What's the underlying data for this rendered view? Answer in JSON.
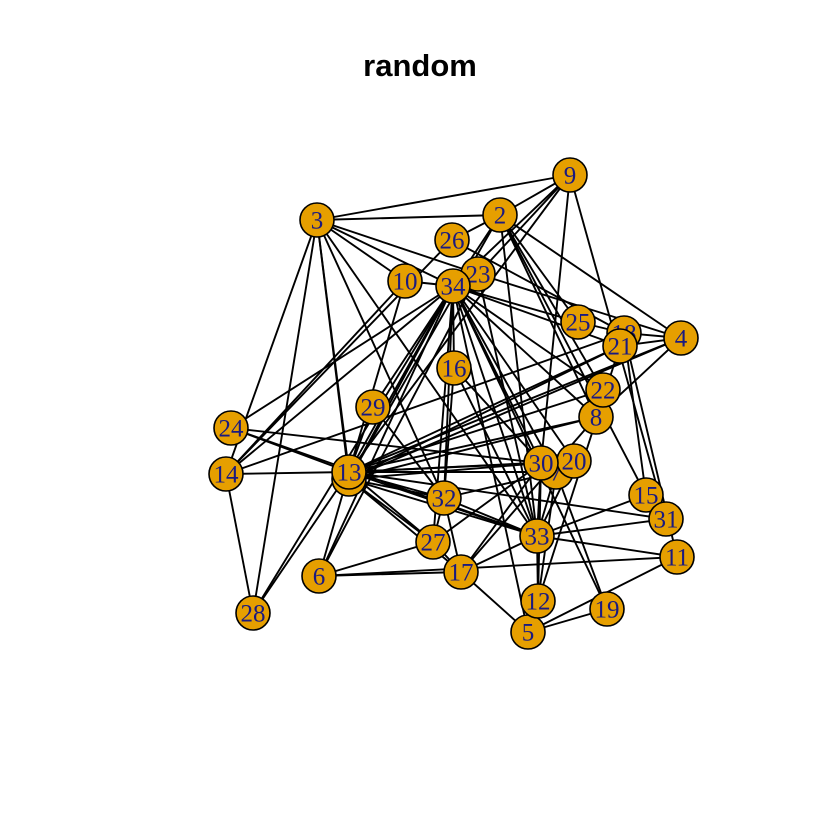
{
  "title": "random",
  "style": {
    "node_fill": "#E69F00",
    "node_label_color": "#1A1A80",
    "edge_color": "#000000"
  },
  "graph": {
    "nodes": [
      {
        "id": "1"
      },
      {
        "id": "2"
      },
      {
        "id": "3"
      },
      {
        "id": "4"
      },
      {
        "id": "5"
      },
      {
        "id": "6"
      },
      {
        "id": "7"
      },
      {
        "id": "8"
      },
      {
        "id": "9"
      },
      {
        "id": "10"
      },
      {
        "id": "11"
      },
      {
        "id": "12"
      },
      {
        "id": "13"
      },
      {
        "id": "14"
      },
      {
        "id": "15"
      },
      {
        "id": "16"
      },
      {
        "id": "17"
      },
      {
        "id": "18"
      },
      {
        "id": "19"
      },
      {
        "id": "20"
      },
      {
        "id": "21"
      },
      {
        "id": "22"
      },
      {
        "id": "23"
      },
      {
        "id": "24"
      },
      {
        "id": "25"
      },
      {
        "id": "26"
      },
      {
        "id": "27"
      },
      {
        "id": "28"
      },
      {
        "id": "29"
      },
      {
        "id": "30"
      },
      {
        "id": "31"
      },
      {
        "id": "32"
      },
      {
        "id": "33"
      },
      {
        "id": "34"
      }
    ],
    "edges": [
      [
        "3",
        "9"
      ],
      [
        "3",
        "2"
      ],
      [
        "3",
        "10"
      ],
      [
        "3",
        "34"
      ],
      [
        "3",
        "23"
      ],
      [
        "3",
        "13"
      ],
      [
        "3",
        "14"
      ],
      [
        "3",
        "28"
      ],
      [
        "3",
        "1"
      ],
      [
        "3",
        "33"
      ],
      [
        "3",
        "32"
      ],
      [
        "9",
        "2"
      ],
      [
        "9",
        "34"
      ],
      [
        "9",
        "30"
      ],
      [
        "9",
        "13"
      ],
      [
        "9",
        "31"
      ],
      [
        "9",
        "23"
      ],
      [
        "2",
        "26"
      ],
      [
        "2",
        "34"
      ],
      [
        "2",
        "25"
      ],
      [
        "2",
        "4"
      ],
      [
        "2",
        "8"
      ],
      [
        "2",
        "15"
      ],
      [
        "2",
        "33"
      ],
      [
        "2",
        "22"
      ],
      [
        "2",
        "1"
      ],
      [
        "10",
        "34"
      ],
      [
        "10",
        "13"
      ],
      [
        "10",
        "14"
      ],
      [
        "26",
        "14"
      ],
      [
        "26",
        "18"
      ],
      [
        "34",
        "23"
      ],
      [
        "34",
        "16"
      ],
      [
        "34",
        "24"
      ],
      [
        "34",
        "14"
      ],
      [
        "34",
        "13"
      ],
      [
        "34",
        "1"
      ],
      [
        "34",
        "29"
      ],
      [
        "34",
        "32"
      ],
      [
        "34",
        "30"
      ],
      [
        "34",
        "20"
      ],
      [
        "34",
        "7"
      ],
      [
        "34",
        "33"
      ],
      [
        "34",
        "27"
      ],
      [
        "34",
        "19"
      ],
      [
        "34",
        "21"
      ],
      [
        "34",
        "25"
      ],
      [
        "34",
        "22"
      ],
      [
        "34",
        "8"
      ],
      [
        "34",
        "28"
      ],
      [
        "34",
        "6"
      ],
      [
        "34",
        "5"
      ],
      [
        "23",
        "4"
      ],
      [
        "23",
        "33"
      ],
      [
        "23",
        "6"
      ],
      [
        "25",
        "18"
      ],
      [
        "18",
        "4"
      ],
      [
        "18",
        "15"
      ],
      [
        "18",
        "11"
      ],
      [
        "18",
        "14"
      ],
      [
        "4",
        "21"
      ],
      [
        "4",
        "13"
      ],
      [
        "4",
        "1"
      ],
      [
        "4",
        "8"
      ],
      [
        "21",
        "13"
      ],
      [
        "21",
        "1"
      ],
      [
        "21",
        "12"
      ],
      [
        "22",
        "13"
      ],
      [
        "22",
        "8"
      ],
      [
        "8",
        "1"
      ],
      [
        "8",
        "13"
      ],
      [
        "8",
        "17"
      ],
      [
        "24",
        "13"
      ],
      [
        "24",
        "33"
      ],
      [
        "24",
        "30"
      ],
      [
        "14",
        "13"
      ],
      [
        "14",
        "28"
      ],
      [
        "29",
        "32"
      ],
      [
        "29",
        "13"
      ],
      [
        "13",
        "1"
      ],
      [
        "13",
        "30"
      ],
      [
        "13",
        "20"
      ],
      [
        "13",
        "7"
      ],
      [
        "13",
        "32"
      ],
      [
        "13",
        "33"
      ],
      [
        "13",
        "27"
      ],
      [
        "13",
        "6"
      ],
      [
        "13",
        "28"
      ],
      [
        "13",
        "31"
      ],
      [
        "1",
        "33"
      ],
      [
        "1",
        "32"
      ],
      [
        "1",
        "27"
      ],
      [
        "1",
        "17"
      ],
      [
        "1",
        "30"
      ],
      [
        "30",
        "20"
      ],
      [
        "30",
        "7"
      ],
      [
        "30",
        "33"
      ],
      [
        "30",
        "27"
      ],
      [
        "30",
        "17"
      ],
      [
        "30",
        "12"
      ],
      [
        "20",
        "7"
      ],
      [
        "20",
        "33"
      ],
      [
        "7",
        "33"
      ],
      [
        "7",
        "32"
      ],
      [
        "7",
        "12"
      ],
      [
        "7",
        "19"
      ],
      [
        "32",
        "27"
      ],
      [
        "32",
        "33"
      ],
      [
        "32",
        "17"
      ],
      [
        "33",
        "15"
      ],
      [
        "33",
        "31"
      ],
      [
        "33",
        "11"
      ],
      [
        "33",
        "12"
      ],
      [
        "33",
        "17"
      ],
      [
        "27",
        "17"
      ],
      [
        "27",
        "6"
      ],
      [
        "6",
        "17"
      ],
      [
        "6",
        "11"
      ],
      [
        "17",
        "5"
      ],
      [
        "5",
        "19"
      ],
      [
        "5",
        "11"
      ],
      [
        "5",
        "12"
      ],
      [
        "16",
        "32"
      ],
      [
        "16",
        "33"
      ],
      [
        "16",
        "30"
      ]
    ]
  }
}
